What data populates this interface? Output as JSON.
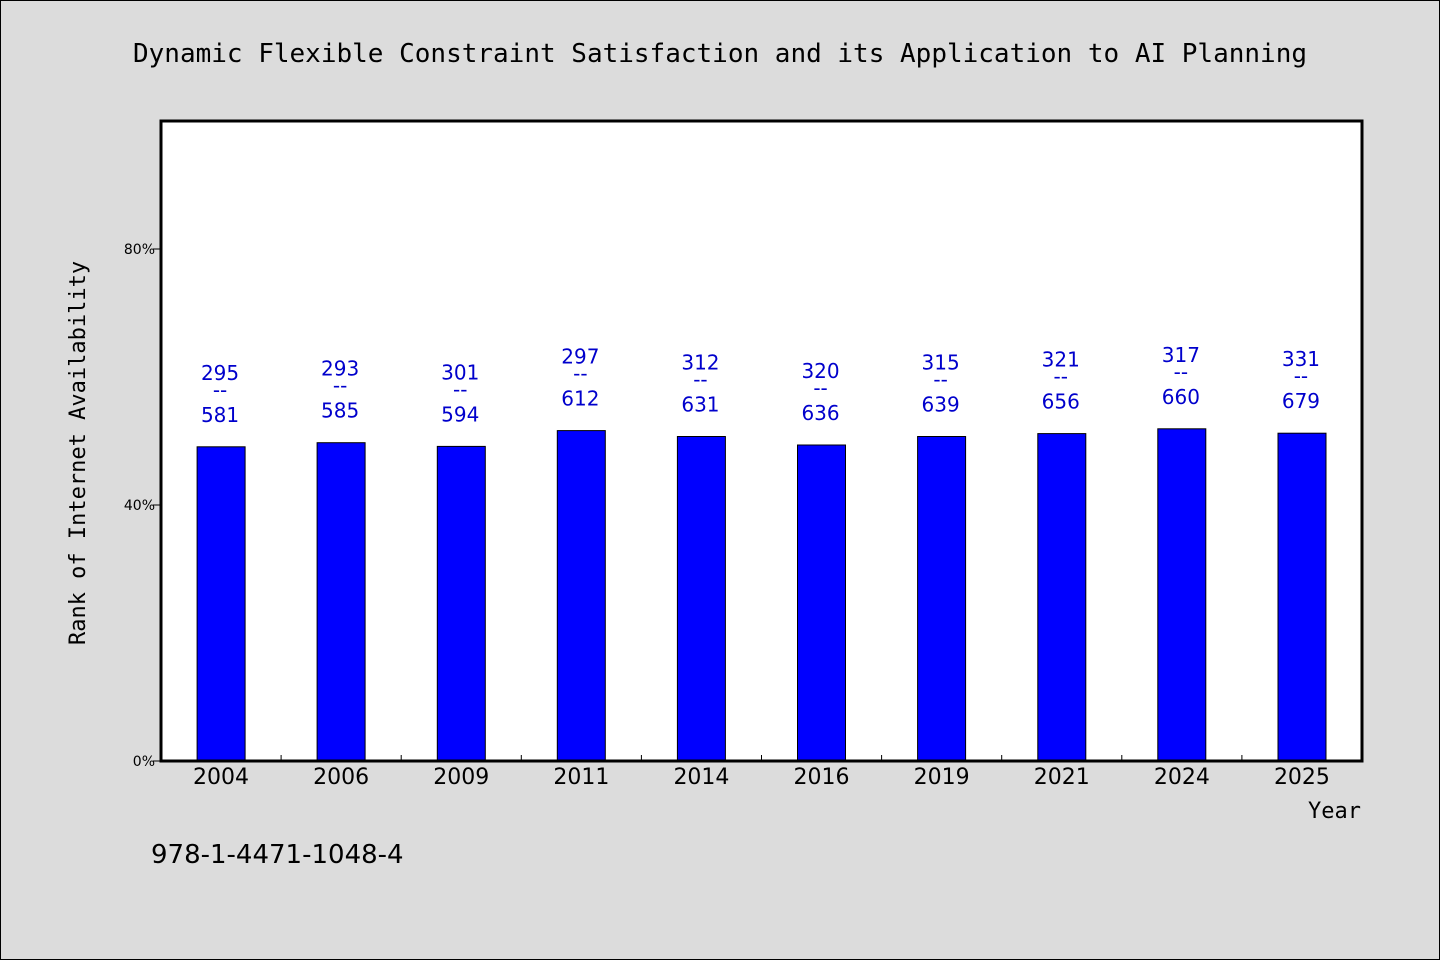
{
  "chart_data": {
    "type": "bar",
    "title": "Dynamic Flexible Constraint Satisfaction and its Application to AI Planning",
    "xlabel": "Year",
    "ylabel": "Rank of Internet Availability",
    "categories": [
      "2004",
      "2006",
      "2009",
      "2011",
      "2014",
      "2016",
      "2019",
      "2021",
      "2024",
      "2025"
    ],
    "values": [
      0.4909,
      0.4974,
      0.4916,
      0.5163,
      0.507,
      0.4937,
      0.507,
      0.5116,
      0.519,
      0.5122
    ],
    "labels_top": [
      "295",
      "293",
      "301",
      "297",
      "312",
      "320",
      "315",
      "321",
      "317",
      "331"
    ],
    "labels_sep": "--",
    "labels_bottom": [
      "581",
      "585",
      "594",
      "612",
      "631",
      "636",
      "639",
      "656",
      "660",
      "679"
    ],
    "yticks": [
      {
        "value": 0,
        "label": "0%"
      },
      {
        "value": 0.4,
        "label": "40%"
      },
      {
        "value": 0.8,
        "label": "80%"
      }
    ],
    "ylim": [
      0,
      1.0
    ],
    "grid": false,
    "bar_color": "#0000ff",
    "label_color": "#0000cc",
    "background_color": "#dcdcdc",
    "plot_background": "#ffffff"
  },
  "footnote": "978-1-4471-1048-4"
}
